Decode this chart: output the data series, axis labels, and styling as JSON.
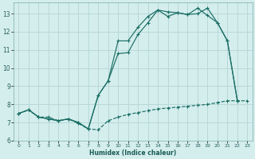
{
  "xlabel": "Humidex (Indice chaleur)",
  "xlim": [
    -0.5,
    23.5
  ],
  "ylim": [
    6.0,
    13.6
  ],
  "yticks": [
    6,
    7,
    8,
    9,
    10,
    11,
    12,
    13
  ],
  "xticks": [
    0,
    1,
    2,
    3,
    4,
    5,
    6,
    7,
    8,
    9,
    10,
    11,
    12,
    13,
    14,
    15,
    16,
    17,
    18,
    19,
    20,
    21,
    22,
    23
  ],
  "background_color": "#d4eeed",
  "grid_color": "#b8d8d8",
  "line_color": "#1a6e65",
  "curve1_x": [
    0,
    1,
    2,
    3,
    4,
    5,
    6,
    7,
    8,
    9,
    10,
    11,
    12,
    13,
    14,
    15,
    16,
    17,
    18,
    19,
    20,
    21,
    22,
    23
  ],
  "curve1_y": [
    7.5,
    7.7,
    7.3,
    7.3,
    7.1,
    7.2,
    6.95,
    6.65,
    6.6,
    7.1,
    7.3,
    7.45,
    7.55,
    7.65,
    7.75,
    7.8,
    7.85,
    7.9,
    7.95,
    8.0,
    8.1,
    8.2,
    8.2,
    8.2
  ],
  "curve2_x": [
    0,
    1,
    2,
    3,
    4,
    5,
    6,
    7,
    8,
    9,
    10,
    11,
    12,
    13,
    14,
    15,
    16,
    17,
    18,
    19,
    20,
    21,
    22
  ],
  "curve2_y": [
    7.5,
    7.7,
    7.3,
    7.2,
    7.1,
    7.2,
    7.0,
    6.65,
    8.5,
    9.3,
    10.8,
    10.85,
    11.85,
    12.5,
    13.2,
    13.1,
    13.05,
    12.95,
    13.0,
    13.3,
    12.5,
    11.5,
    8.2
  ],
  "curve3_x": [
    0,
    1,
    2,
    3,
    4,
    5,
    6,
    7,
    8,
    9,
    10,
    11,
    12,
    13,
    14,
    15,
    16,
    17,
    18,
    19,
    20,
    21,
    22
  ],
  "curve3_y": [
    7.5,
    7.7,
    7.3,
    7.2,
    7.1,
    7.2,
    7.0,
    6.65,
    8.5,
    9.3,
    11.5,
    11.5,
    12.25,
    12.85,
    13.2,
    12.85,
    13.05,
    12.95,
    13.3,
    12.9,
    12.5,
    11.5,
    8.2
  ]
}
